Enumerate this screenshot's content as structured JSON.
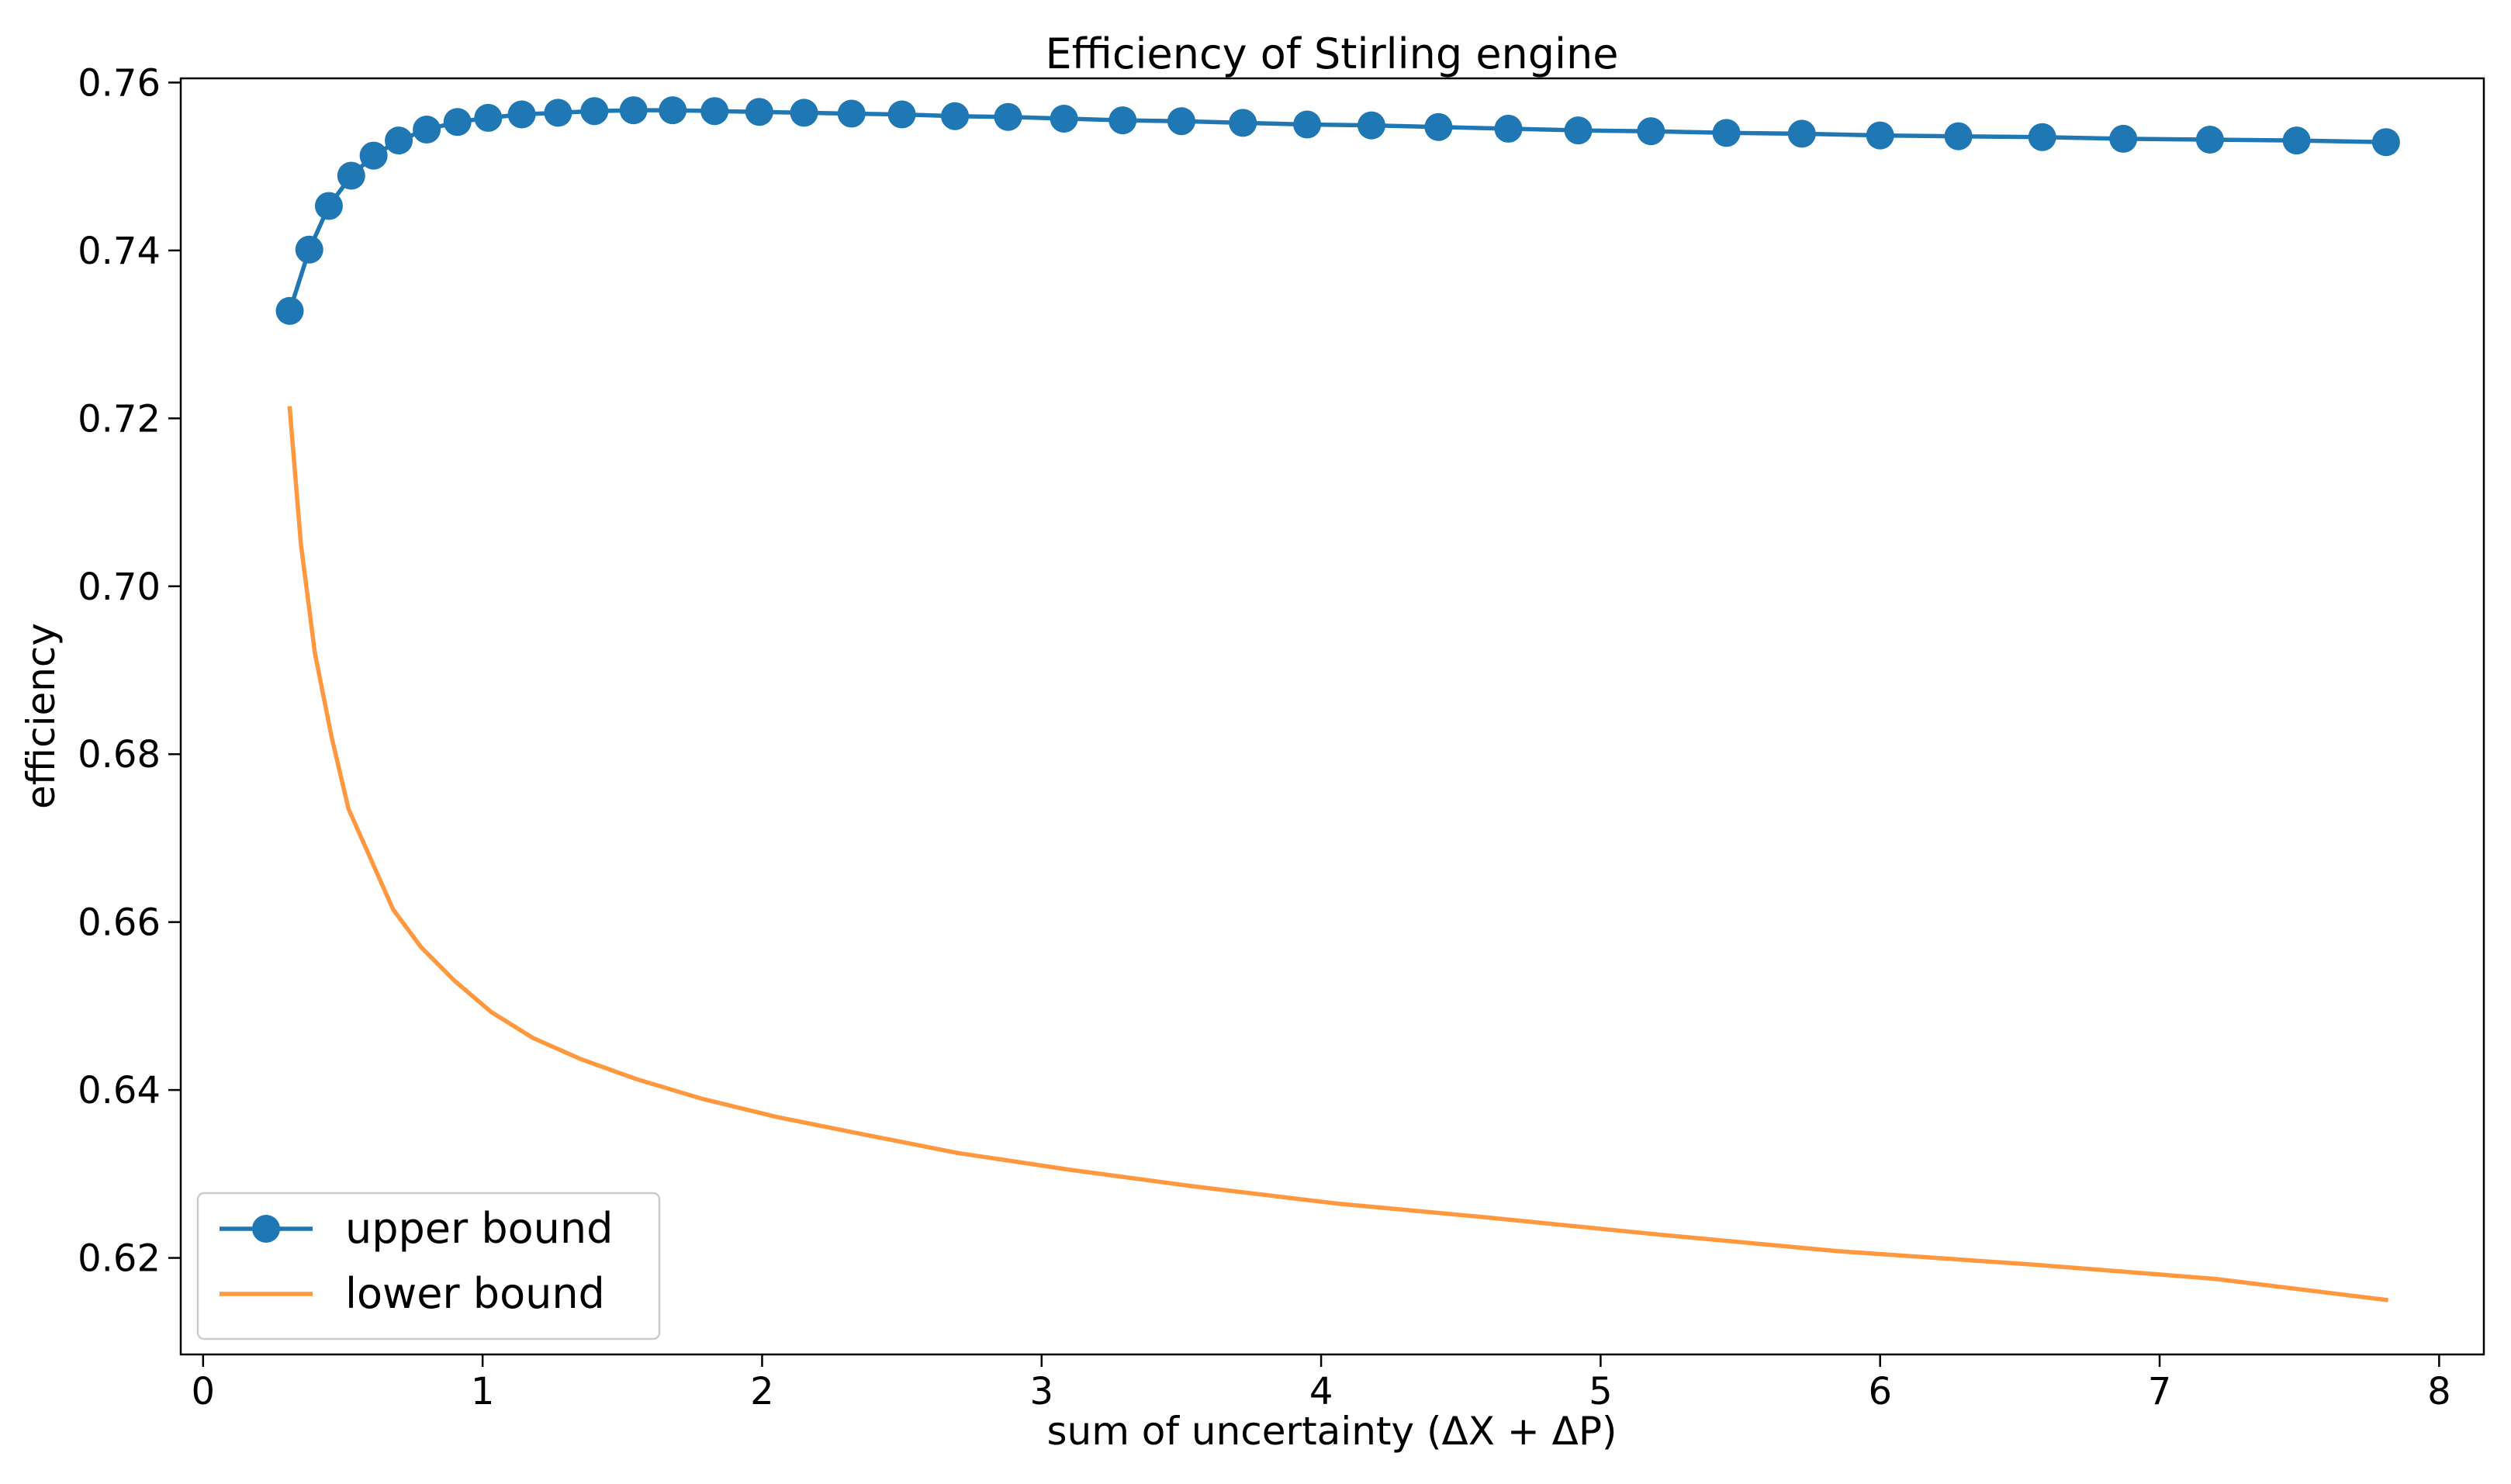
{
  "chart_data": {
    "type": "line",
    "title": "Efficiency of Stirling engine",
    "xlabel": "sum of uncertainty (ΔX + ΔP)",
    "ylabel": "efficiency",
    "xlim": [
      -0.08,
      8.16
    ],
    "ylim": [
      0.6085,
      0.7605
    ],
    "x_ticks": [
      0,
      1,
      2,
      3,
      4,
      5,
      6,
      7,
      8
    ],
    "x_tick_labels": [
      "0",
      "1",
      "2",
      "3",
      "4",
      "5",
      "6",
      "7",
      "8"
    ],
    "y_ticks": [
      0.62,
      0.64,
      0.66,
      0.68,
      0.7,
      0.72,
      0.74,
      0.76
    ],
    "y_tick_labels": [
      "0.62",
      "0.64",
      "0.66",
      "0.68",
      "0.70",
      "0.72",
      "0.74",
      "0.76"
    ],
    "grid": false,
    "legend": "lower-left",
    "series": [
      {
        "name": "upper bound",
        "color": "#1f77b4",
        "marker": "circle",
        "x": [
          0.31,
          0.38,
          0.45,
          0.53,
          0.61,
          0.7,
          0.8,
          0.91,
          1.02,
          1.14,
          1.27,
          1.4,
          1.54,
          1.68,
          1.83,
          1.99,
          2.15,
          2.32,
          2.5,
          2.69,
          2.88,
          3.08,
          3.29,
          3.5,
          3.72,
          3.95,
          4.18,
          4.42,
          4.67,
          4.92,
          5.18,
          5.45,
          5.72,
          6.0,
          6.28,
          6.58,
          6.87,
          7.18,
          7.49,
          7.81
        ],
        "values": [
          0.7328,
          0.7401,
          0.7453,
          0.7489,
          0.7513,
          0.7531,
          0.7544,
          0.7553,
          0.7558,
          0.7562,
          0.7564,
          0.7566,
          0.7567,
          0.7567,
          0.7566,
          0.7565,
          0.7564,
          0.7563,
          0.7562,
          0.756,
          0.7559,
          0.7557,
          0.7555,
          0.7554,
          0.7552,
          0.755,
          0.7549,
          0.7547,
          0.7545,
          0.7543,
          0.7542,
          0.754,
          0.7539,
          0.7537,
          0.7536,
          0.7535,
          0.7533,
          0.7532,
          0.7531,
          0.7529
        ]
      },
      {
        "name": "lower bound",
        "color": "#ff983e",
        "marker": "none",
        "x": [
          0.31,
          0.35,
          0.4,
          0.46,
          0.52,
          0.6,
          0.68,
          0.78,
          0.9,
          1.03,
          1.18,
          1.35,
          1.55,
          1.78,
          2.05,
          2.35,
          2.7,
          3.1,
          3.55,
          4.05,
          4.6,
          5.2,
          5.85,
          6.55,
          7.2,
          7.81
        ],
        "values": [
          0.7212,
          0.705,
          0.692,
          0.682,
          0.6735,
          0.6675,
          0.6615,
          0.657,
          0.653,
          0.6493,
          0.6462,
          0.6437,
          0.6413,
          0.639,
          0.6368,
          0.6348,
          0.6325,
          0.6305,
          0.6285,
          0.6265,
          0.6248,
          0.6228,
          0.6208,
          0.6192,
          0.6175,
          0.615
        ]
      }
    ]
  }
}
